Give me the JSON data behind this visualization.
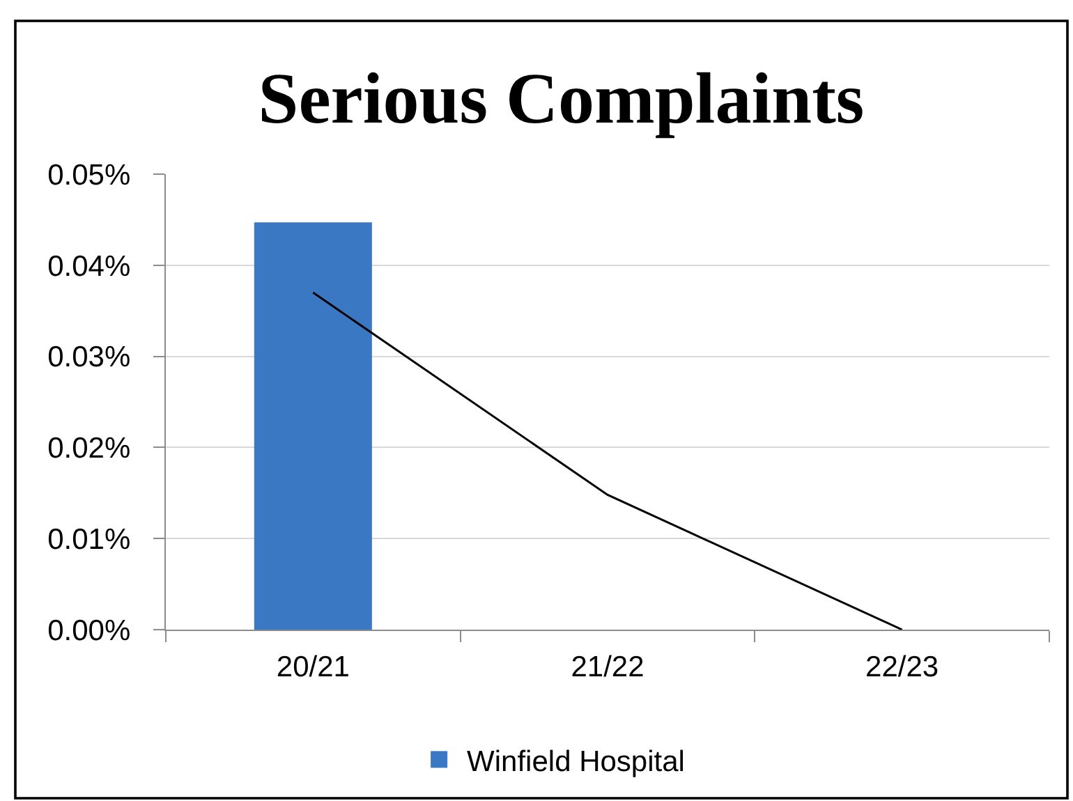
{
  "chart_data": {
    "type": "bar",
    "title": "Serious Complaints",
    "categories": [
      "20/21",
      "21/22",
      "22/23"
    ],
    "ylim": [
      0,
      0.05
    ],
    "yticks": [
      {
        "value": 0,
        "label": "0.00%"
      },
      {
        "value": 0.01,
        "label": "0.01%"
      },
      {
        "value": 0.02,
        "label": "0.02%"
      },
      {
        "value": 0.03,
        "label": "0.03%"
      },
      {
        "value": 0.04,
        "label": "0.04%"
      },
      {
        "value": 0.05,
        "label": "0.05%"
      }
    ],
    "grid": "y",
    "legend": "bottom",
    "marker": "none",
    "series": [
      {
        "name": "Winfield Hospital",
        "color": "#3a78c4",
        "values": [
          0.0447,
          0,
          0
        ]
      },
      {
        "type": "line",
        "color": "#000000",
        "values": [
          0.037,
          0.0148,
          0
        ]
      }
    ]
  }
}
